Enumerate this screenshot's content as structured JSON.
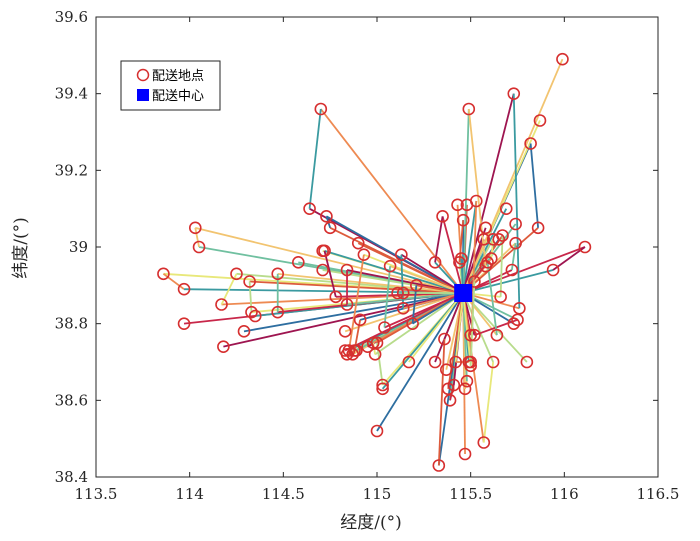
{
  "chart_data": {
    "type": "scatter",
    "title": "",
    "xlabel": "经度/(°)",
    "ylabel": "纬度/(°)",
    "xlim": [
      113.5,
      116.5
    ],
    "ylim": [
      38.4,
      39.6
    ],
    "xticks": [
      113.5,
      114,
      114.5,
      115,
      115.5,
      116,
      116.5
    ],
    "yticks": [
      38.4,
      38.6,
      38.8,
      39,
      39.2,
      39.4,
      39.6
    ],
    "grid": false,
    "legend_position": "top-left",
    "series": [
      {
        "name": "配送地点",
        "marker": "circle",
        "color": "#d62f2f",
        "x": [
          113.86,
          113.97,
          113.97,
          114.03,
          114.05,
          114.18,
          114.17,
          114.25,
          114.29,
          114.32,
          114.33,
          114.35,
          114.47,
          114.47,
          114.58,
          114.64,
          114.7,
          114.71,
          114.73,
          114.75,
          114.71,
          114.72,
          114.78,
          114.83,
          114.84,
          114.84,
          114.84,
          114.88,
          114.91,
          114.9,
          114.93,
          114.85,
          114.83,
          114.87,
          114.89,
          114.95,
          114.98,
          114.99,
          115.0,
          115.0,
          115.03,
          115.03,
          115.04,
          115.07,
          115.11,
          115.13,
          115.14,
          115.14,
          115.19,
          115.21,
          115.17,
          115.31,
          115.35,
          115.37,
          115.39,
          115.41,
          115.43,
          115.44,
          115.46,
          115.48,
          115.5,
          115.53,
          115.57,
          115.58,
          115.49,
          115.58,
          115.61,
          115.62,
          115.65,
          115.67,
          115.66,
          115.69,
          115.72,
          115.74,
          115.74,
          115.73,
          115.76,
          115.8,
          115.82,
          115.86,
          115.87,
          115.94,
          116.11,
          115.99,
          115.75,
          115.52,
          115.47,
          115.36,
          115.33,
          115.38,
          115.42,
          115.49,
          115.5,
          115.47,
          115.48,
          115.31,
          115.57,
          115.62,
          115.73,
          115.52,
          115.5,
          115.45,
          115.59,
          115.64
        ],
        "y": [
          38.93,
          38.89,
          38.8,
          39.05,
          39.0,
          38.74,
          38.85,
          38.93,
          38.78,
          38.91,
          38.83,
          38.82,
          38.83,
          38.93,
          38.96,
          39.1,
          39.36,
          38.94,
          39.08,
          39.05,
          38.99,
          38.99,
          38.87,
          38.78,
          38.85,
          38.94,
          38.72,
          38.73,
          38.81,
          39.01,
          38.98,
          38.73,
          38.73,
          38.72,
          38.73,
          38.74,
          38.75,
          38.72,
          38.52,
          38.75,
          38.64,
          38.63,
          38.79,
          38.95,
          38.88,
          38.98,
          38.84,
          38.88,
          38.8,
          38.9,
          38.7,
          38.96,
          39.08,
          38.68,
          38.6,
          38.64,
          39.11,
          38.96,
          39.07,
          39.11,
          38.7,
          39.12,
          39.02,
          38.95,
          39.36,
          39.05,
          38.97,
          39.02,
          39.02,
          39.03,
          38.87,
          39.1,
          38.94,
          39.01,
          39.06,
          39.4,
          38.84,
          38.7,
          39.27,
          39.05,
          39.33,
          38.94,
          39.0,
          39.49,
          38.81,
          38.77,
          38.46,
          38.76,
          38.43,
          38.63,
          38.7,
          38.7,
          38.77,
          38.63,
          38.65,
          38.7,
          38.49,
          38.7,
          38.8,
          38.91,
          38.69,
          38.97,
          38.96,
          38.77
        ]
      },
      {
        "name": "配送中心",
        "marker": "square",
        "color": "#0000ff",
        "x": [
          115.46
        ],
        "y": [
          38.88
        ]
      }
    ]
  }
}
